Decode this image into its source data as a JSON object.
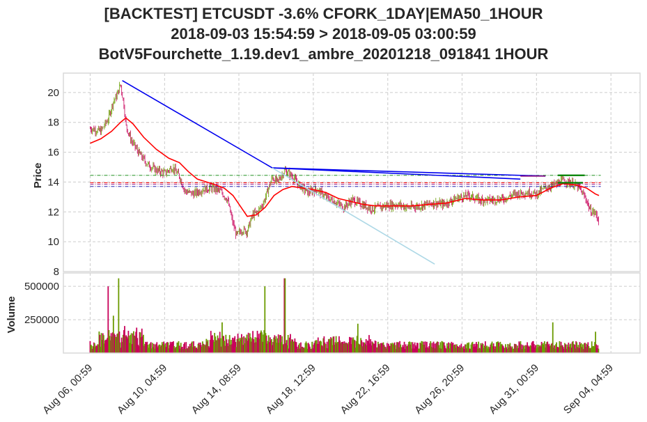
{
  "chart_data": {
    "type": "candlestick",
    "title_lines": [
      "[BACKTEST] ETCUSDT -3.6% CFORK_1DAY|EMA50_1HOUR",
      "2018-09-03 15:54:59 > 2018-09-05 03:00:59",
      "BotV5Fourchette_1.19.dev1_ambre_20201218_091841 1HOUR"
    ],
    "price_panel": {
      "ylabel": "Price",
      "yticks": [
        8,
        10,
        12,
        14,
        16,
        18,
        20
      ],
      "ylim": [
        8,
        21.3
      ],
      "grid": true,
      "close_series": [
        {
          "day": 0,
          "v": 17.6
        },
        {
          "day": 0.6,
          "v": 17.4
        },
        {
          "day": 1.0,
          "v": 18.2
        },
        {
          "day": 1.3,
          "v": 19.4
        },
        {
          "day": 1.5,
          "v": 19.8
        },
        {
          "day": 1.7,
          "v": 20.6
        },
        {
          "day": 1.9,
          "v": 19.1
        },
        {
          "day": 2.0,
          "v": 17.8
        },
        {
          "day": 2.3,
          "v": 16.8
        },
        {
          "day": 2.7,
          "v": 16.0
        },
        {
          "day": 3.2,
          "v": 15.2
        },
        {
          "day": 3.7,
          "v": 14.8
        },
        {
          "day": 4.2,
          "v": 14.6
        },
        {
          "day": 4.6,
          "v": 15.0
        },
        {
          "day": 5.0,
          "v": 14.4
        },
        {
          "day": 5.3,
          "v": 13.4
        },
        {
          "day": 5.8,
          "v": 13.2
        },
        {
          "day": 6.3,
          "v": 13.5
        },
        {
          "day": 6.8,
          "v": 13.6
        },
        {
          "day": 7.3,
          "v": 13.4
        },
        {
          "day": 7.7,
          "v": 12.8
        },
        {
          "day": 8.0,
          "v": 11.2
        },
        {
          "day": 8.2,
          "v": 10.4
        },
        {
          "day": 8.5,
          "v": 10.8
        },
        {
          "day": 8.8,
          "v": 10.7
        },
        {
          "day": 9.1,
          "v": 11.8
        },
        {
          "day": 9.4,
          "v": 12.0
        },
        {
          "day": 9.7,
          "v": 12.6
        },
        {
          "day": 10.0,
          "v": 13.6
        },
        {
          "day": 10.2,
          "v": 14.3
        },
        {
          "day": 10.5,
          "v": 14.0
        },
        {
          "day": 10.9,
          "v": 14.8
        },
        {
          "day": 11.3,
          "v": 14.4
        },
        {
          "day": 11.7,
          "v": 13.8
        },
        {
          "day": 12.2,
          "v": 13.3
        },
        {
          "day": 12.7,
          "v": 13.5
        },
        {
          "day": 13.2,
          "v": 13.0
        },
        {
          "day": 13.7,
          "v": 12.7
        },
        {
          "day": 14.2,
          "v": 12.3
        },
        {
          "day": 14.7,
          "v": 12.8
        },
        {
          "day": 15.2,
          "v": 12.5
        },
        {
          "day": 15.8,
          "v": 12.2
        },
        {
          "day": 16.5,
          "v": 12.4
        },
        {
          "day": 17.2,
          "v": 12.5
        },
        {
          "day": 17.8,
          "v": 12.3
        },
        {
          "day": 18.5,
          "v": 12.4
        },
        {
          "day": 19.2,
          "v": 12.6
        },
        {
          "day": 19.8,
          "v": 12.5
        },
        {
          "day": 20.5,
          "v": 12.9
        },
        {
          "day": 21.2,
          "v": 13.1
        },
        {
          "day": 21.8,
          "v": 12.8
        },
        {
          "day": 22.5,
          "v": 12.8
        },
        {
          "day": 23.2,
          "v": 12.9
        },
        {
          "day": 23.8,
          "v": 13.2
        },
        {
          "day": 24.5,
          "v": 13.3
        },
        {
          "day": 25.0,
          "v": 13.2
        },
        {
          "day": 25.5,
          "v": 13.6
        },
        {
          "day": 26.0,
          "v": 13.8
        },
        {
          "day": 26.5,
          "v": 14.1
        },
        {
          "day": 27.0,
          "v": 13.9
        },
        {
          "day": 27.4,
          "v": 13.6
        },
        {
          "day": 27.8,
          "v": 12.8
        },
        {
          "day": 28.0,
          "v": 12.1
        },
        {
          "day": 28.3,
          "v": 11.9
        },
        {
          "day": 28.5,
          "v": 11.4
        }
      ],
      "ema_series": [
        {
          "day": 0,
          "v": 16.6
        },
        {
          "day": 0.6,
          "v": 16.9
        },
        {
          "day": 1.2,
          "v": 17.4
        },
        {
          "day": 1.7,
          "v": 18.0
        },
        {
          "day": 2.0,
          "v": 18.3
        },
        {
          "day": 2.4,
          "v": 17.9
        },
        {
          "day": 3.0,
          "v": 17.0
        },
        {
          "day": 3.7,
          "v": 16.2
        },
        {
          "day": 4.4,
          "v": 15.6
        },
        {
          "day": 5.0,
          "v": 15.3
        },
        {
          "day": 5.5,
          "v": 14.7
        },
        {
          "day": 6.0,
          "v": 14.2
        },
        {
          "day": 6.8,
          "v": 13.9
        },
        {
          "day": 7.5,
          "v": 13.6
        },
        {
          "day": 8.0,
          "v": 13.1
        },
        {
          "day": 8.4,
          "v": 12.4
        },
        {
          "day": 8.8,
          "v": 11.7
        },
        {
          "day": 9.3,
          "v": 11.8
        },
        {
          "day": 9.8,
          "v": 12.3
        },
        {
          "day": 10.3,
          "v": 13.1
        },
        {
          "day": 10.8,
          "v": 13.5
        },
        {
          "day": 11.3,
          "v": 13.7
        },
        {
          "day": 11.9,
          "v": 13.6
        },
        {
          "day": 12.5,
          "v": 13.5
        },
        {
          "day": 13.2,
          "v": 13.3
        },
        {
          "day": 13.9,
          "v": 12.9
        },
        {
          "day": 14.6,
          "v": 12.7
        },
        {
          "day": 15.3,
          "v": 12.5
        },
        {
          "day": 16.0,
          "v": 12.4
        },
        {
          "day": 17.0,
          "v": 12.4
        },
        {
          "day": 18.0,
          "v": 12.4
        },
        {
          "day": 19.0,
          "v": 12.5
        },
        {
          "day": 20.0,
          "v": 12.6
        },
        {
          "day": 21.0,
          "v": 12.9
        },
        {
          "day": 22.0,
          "v": 12.8
        },
        {
          "day": 23.0,
          "v": 12.8
        },
        {
          "day": 24.0,
          "v": 13.0
        },
        {
          "day": 25.0,
          "v": 13.1
        },
        {
          "day": 25.8,
          "v": 13.6
        },
        {
          "day": 26.5,
          "v": 13.9
        },
        {
          "day": 27.2,
          "v": 13.8
        },
        {
          "day": 27.8,
          "v": 13.6
        },
        {
          "day": 28.3,
          "v": 13.2
        },
        {
          "day": 28.5,
          "v": 13.1
        }
      ],
      "trend_lines": [
        {
          "color": "#0000ee",
          "points": [
            {
              "day": 1.8,
              "v": 20.8
            },
            {
              "day": 10.2,
              "v": 14.95
            },
            {
              "day": 24.1,
              "v": 14.2
            }
          ]
        },
        {
          "color": "#0000ee",
          "points": [
            {
              "day": 10.2,
              "v": 14.95
            },
            {
              "day": 25.5,
              "v": 14.4
            }
          ]
        },
        {
          "color": "#add8e6",
          "points": [
            {
              "day": 10.2,
              "v": 14.95
            },
            {
              "day": 19.3,
              "v": 8.5
            }
          ]
        },
        {
          "color": "#800080",
          "points": [
            {
              "day": 24.1,
              "v": 14.4
            },
            {
              "day": 25.5,
              "v": 14.4
            }
          ]
        },
        {
          "color": "#008000",
          "points": [
            {
              "day": 26.2,
              "v": 14.45
            },
            {
              "day": 27.7,
              "v": 14.45
            }
          ]
        },
        {
          "color": "#008000",
          "points": [
            {
              "day": 26.2,
              "v": 13.95
            },
            {
              "day": 27.6,
              "v": 13.95
            }
          ]
        }
      ],
      "hlines": [
        {
          "v": 14.45,
          "color": "#008000"
        },
        {
          "v": 13.95,
          "color": "#ff0000"
        },
        {
          "v": 13.85,
          "color": "#800080"
        },
        {
          "v": 13.7,
          "color": "#0000a0"
        }
      ]
    },
    "volume_panel": {
      "ylabel": "Volume",
      "yticks": [
        250000,
        500000
      ],
      "ylim": [
        0,
        600000
      ],
      "grid": true,
      "bar_colors": [
        "#6b9a00",
        "#c8005a"
      ],
      "spikes": [
        {
          "day": 1.0,
          "v": 500000
        },
        {
          "day": 1.6,
          "v": 560000
        },
        {
          "day": 1.3,
          "v": 280000
        },
        {
          "day": 9.8,
          "v": 500000
        },
        {
          "day": 10.9,
          "v": 560000
        },
        {
          "day": 7.4,
          "v": 230000
        },
        {
          "day": 15.0,
          "v": 220000
        },
        {
          "day": 25.9,
          "v": 230000
        },
        {
          "day": 28.3,
          "v": 160000
        }
      ]
    },
    "x_axis": {
      "tick_labels": [
        "Aug 06, 00:59",
        "Aug 10, 04:59",
        "Aug 14, 08:59",
        "Aug 18, 12:59",
        "Aug 22, 16:59",
        "Aug 26, 20:59",
        "Aug 31, 00:59",
        "Sep 04, 04:59"
      ],
      "tick_days": [
        0,
        4.17,
        8.33,
        12.5,
        16.67,
        20.83,
        25.0,
        29.17
      ],
      "xlim_days": [
        -1.5,
        30.8
      ]
    }
  }
}
